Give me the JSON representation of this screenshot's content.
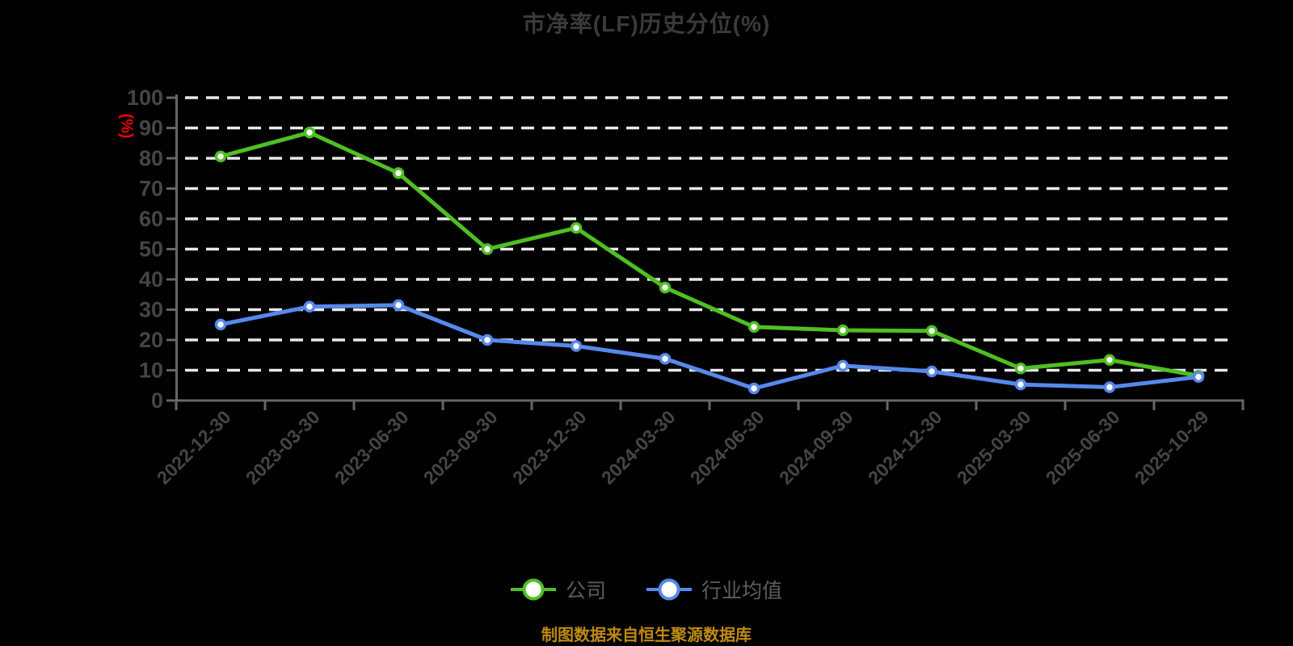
{
  "title": "市净率(LF)历史分位(%)",
  "y_unit_label": "(%)",
  "footer": "制图数据来自恒生聚源数据库",
  "legend": {
    "items": [
      {
        "label": "公司",
        "color": "#4FBF23"
      },
      {
        "label": "行业均值",
        "color": "#5689EC"
      }
    ]
  },
  "colors": {
    "background": "#000000",
    "title_text": "#3a3a3a",
    "axis_line": "#666666",
    "tick_text": "#454545",
    "grid_line": "#e9e9e9",
    "unit_label": "#ee0000",
    "footer_text": "#be8b11",
    "company_line": "#4FBF23",
    "industry_line": "#5689EC",
    "marker_fill": "#ffffff"
  },
  "chart_data": {
    "type": "line",
    "title": "市净率(LF)历史分位(%)",
    "xlabel": "",
    "ylabel": "(%)",
    "ylim": [
      0,
      100
    ],
    "y_ticks": [
      0,
      10,
      20,
      30,
      40,
      50,
      60,
      70,
      80,
      90,
      100
    ],
    "grid": "horizontal-dashed-white",
    "legend_position": "bottom",
    "categories": [
      "2022-12-30",
      "2023-03-30",
      "2023-06-30",
      "2023-09-30",
      "2023-12-30",
      "2024-03-30",
      "2024-06-30",
      "2024-09-30",
      "2024-12-30",
      "2025-03-30",
      "2025-06-30",
      "2025-10-29"
    ],
    "series": [
      {
        "name": "公司",
        "color": "#4FBF23",
        "values": [
          80.6,
          88.5,
          75.1,
          50.0,
          57.0,
          37.3,
          24.3,
          23.2,
          23.0,
          10.6,
          13.4,
          8.2
        ]
      },
      {
        "name": "行业均值",
        "color": "#5689EC",
        "values": [
          25.1,
          31.0,
          31.5,
          20.0,
          18.0,
          13.8,
          4.0,
          11.5,
          9.6,
          5.3,
          4.4,
          7.8
        ]
      }
    ]
  }
}
